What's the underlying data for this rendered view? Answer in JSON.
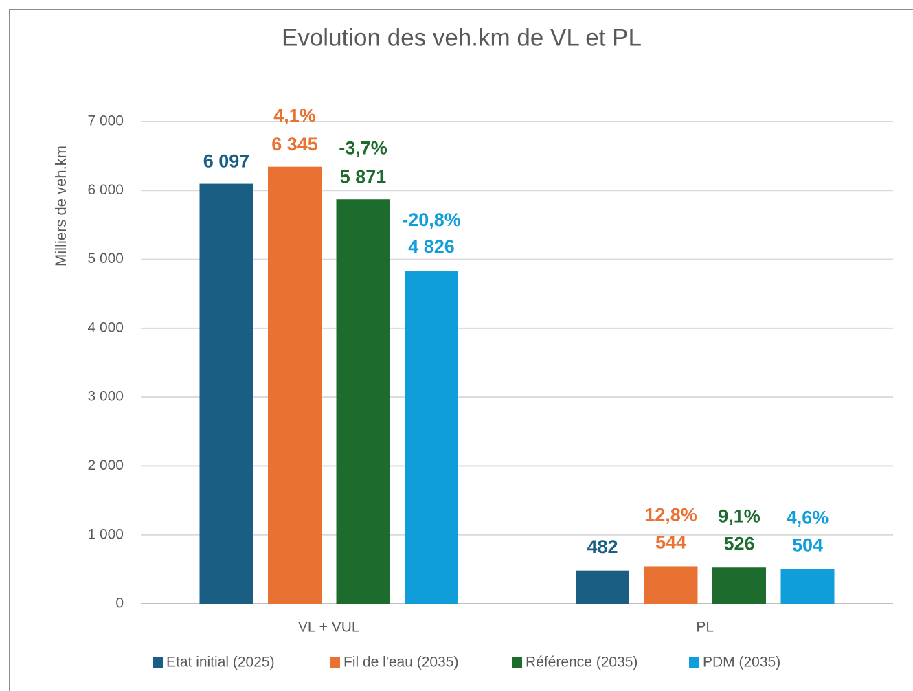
{
  "chart_data": {
    "type": "bar",
    "title": "Evolution des veh.km de VL et PL",
    "y_label": "Milliers de veh.km",
    "categories": [
      "VL + VUL",
      "PL"
    ],
    "series": [
      {
        "name": "Etat initial (2025)",
        "color": "#1a5f83",
        "values": [
          6097,
          482
        ],
        "value_labels": [
          "6 097",
          "482"
        ]
      },
      {
        "name": "Fil de l'eau (2035)",
        "color": "#e97132",
        "values": [
          6345,
          544
        ],
        "value_labels": [
          "6 345",
          "544"
        ],
        "change_labels": [
          "4,1%",
          "12,8%"
        ]
      },
      {
        "name": "Référence (2035)",
        "color": "#1e6b2e",
        "values": [
          5871,
          526
        ],
        "value_labels": [
          "5 871",
          "526"
        ],
        "change_labels": [
          "-3,7%",
          "9,1%"
        ]
      },
      {
        "name": "PDM (2035)",
        "color": "#0f9ed9",
        "values": [
          4826,
          504
        ],
        "value_labels": [
          "4 826",
          "504"
        ],
        "change_labels": [
          "-20,8%",
          "4,6%"
        ]
      }
    ],
    "ylim": [
      0,
      7000
    ],
    "yticks": [
      0,
      {
        "value": 1000,
        "label": "1 000"
      },
      {
        "value": 2000,
        "label": "2 000"
      },
      {
        "value": 3000,
        "label": "3 000"
      },
      {
        "value": 4000,
        "label": "4 000"
      },
      {
        "value": 5000,
        "label": "5 000"
      },
      {
        "value": 6000,
        "label": "6 000"
      },
      {
        "value": 7000,
        "label": "7 000"
      }
    ],
    "grid": true,
    "legend": "bottom"
  }
}
